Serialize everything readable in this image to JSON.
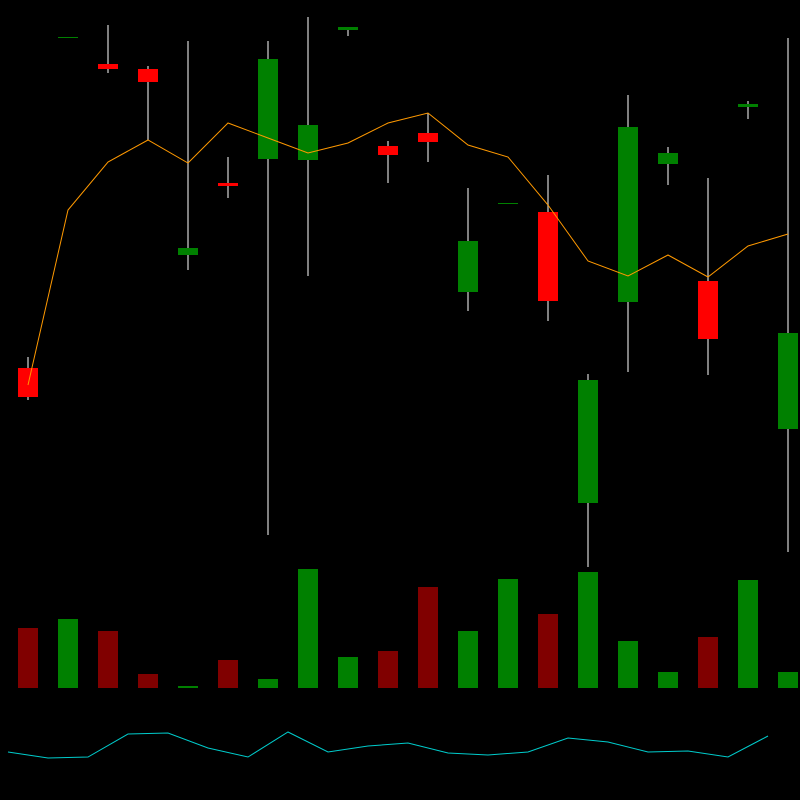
{
  "chart_data": {
    "type": "candlestick",
    "ylim": [
      0,
      800
    ],
    "open": [
      432,
      763,
      736,
      731,
      545,
      617,
      641,
      640,
      770,
      654,
      667,
      508,
      597,
      588,
      297,
      498,
      636,
      519,
      693,
      371
    ],
    "high": [
      443,
      763,
      775,
      734,
      759,
      643,
      759,
      783,
      773,
      659,
      687,
      612,
      597,
      625,
      426,
      705,
      653,
      622,
      699,
      762
    ],
    "low": [
      400,
      763,
      727,
      660,
      530,
      602,
      265,
      524,
      764,
      617,
      638,
      489,
      597,
      479,
      233,
      428,
      615,
      425,
      681,
      248
    ],
    "close": [
      403,
      763,
      731,
      718,
      552,
      614,
      741,
      675,
      773,
      645,
      658,
      559,
      597,
      499,
      420,
      673,
      647,
      461,
      696,
      467
    ],
    "up_color": "#008000",
    "down_color": "#ff0000",
    "wick_color": "#aaaaaa",
    "ma": {
      "color": "#ff9900",
      "values": [
        415,
        590,
        638,
        660,
        637,
        677,
        662,
        647,
        657,
        677,
        687,
        655,
        643,
        595,
        539,
        524,
        545,
        523,
        554,
        566
      ]
    },
    "volume": {
      "ylim": [
        0,
        130
      ],
      "up_color": "#008000",
      "down_color": "#800000",
      "values": [
        60,
        69,
        57,
        14,
        2,
        28,
        9,
        119,
        31,
        37,
        101,
        57,
        109,
        74,
        116,
        47,
        16,
        51,
        108,
        16
      ]
    },
    "oscillator": {
      "ylim": [
        0,
        800
      ],
      "color": "#00cccc",
      "values": [
        48,
        42,
        43,
        66,
        67,
        52,
        43,
        68,
        48,
        54,
        57,
        47,
        45,
        48,
        62,
        58,
        48,
        49,
        43,
        64
      ]
    }
  }
}
